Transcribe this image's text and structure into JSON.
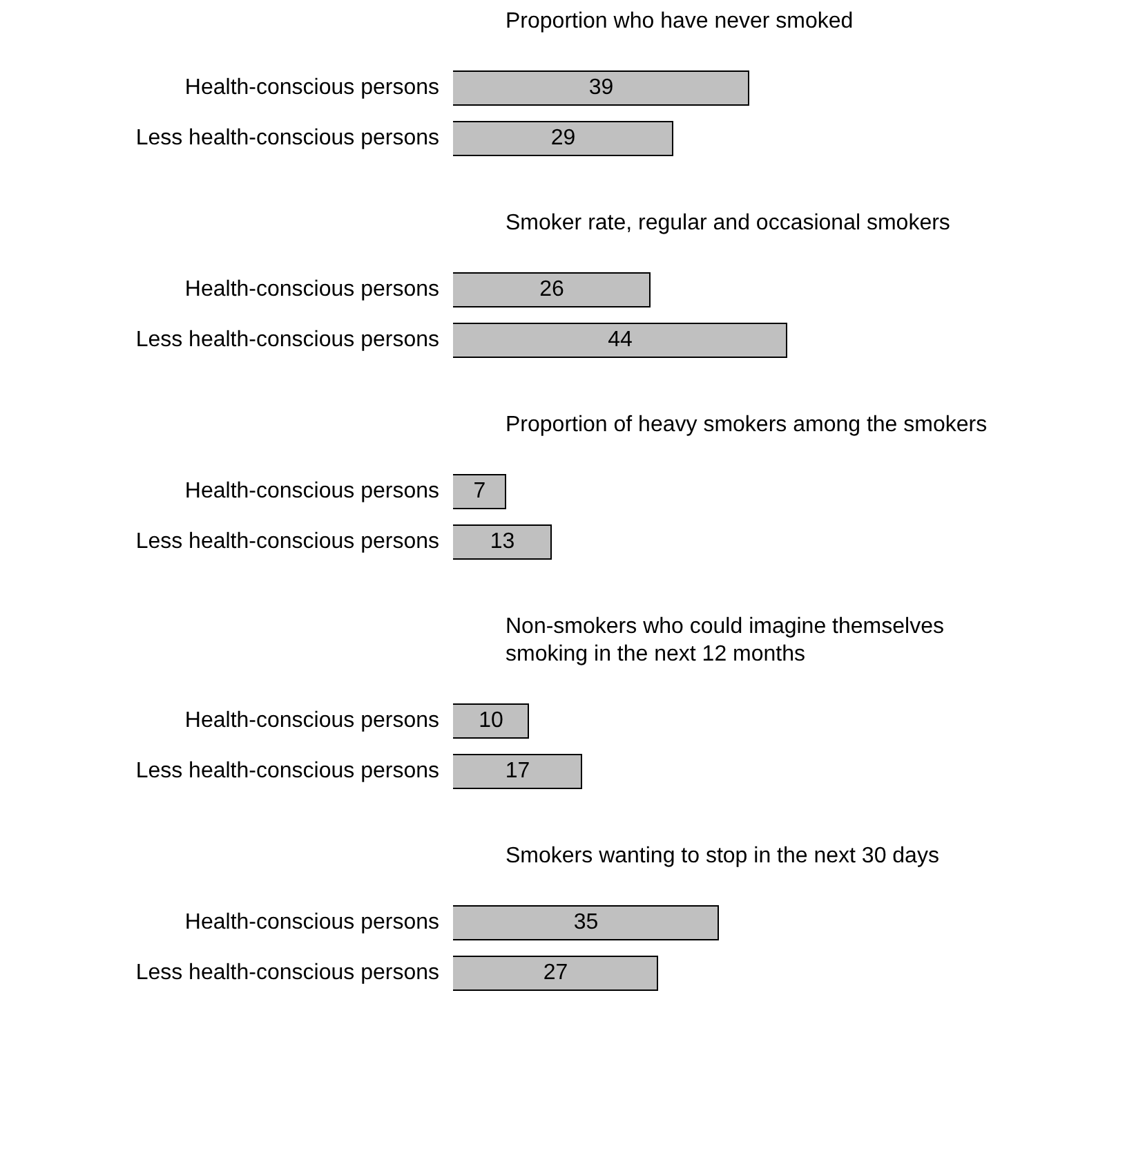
{
  "chart_data": [
    {
      "type": "bar",
      "orientation": "horizontal",
      "title": "Proportion who have never smoked",
      "categories": [
        "Health-conscious persons",
        "Less health-conscious persons"
      ],
      "values": [
        39,
        29
      ],
      "color": "#c0c0c0",
      "data_labels": true,
      "tick_labels": "y"
    },
    {
      "type": "bar",
      "orientation": "horizontal",
      "title": "Smoker rate, regular and occasional smokers",
      "categories": [
        "Health-conscious persons",
        "Less health-conscious persons"
      ],
      "values": [
        26,
        44
      ],
      "color": "#c0c0c0",
      "data_labels": true,
      "tick_labels": "y"
    },
    {
      "type": "bar",
      "orientation": "horizontal",
      "title": "Proportion of heavy smokers among the smokers",
      "categories": [
        "Health-conscious persons",
        "Less health-conscious persons"
      ],
      "values": [
        7,
        13
      ],
      "color": "#c0c0c0",
      "data_labels": true,
      "tick_labels": "y"
    },
    {
      "type": "bar",
      "orientation": "horizontal",
      "title": "Non-smokers who could imagine themselves\nsmoking in the next 12 months",
      "categories": [
        "Health-conscious persons",
        "Less health-conscious persons"
      ],
      "values": [
        10,
        17
      ],
      "color": "#c0c0c0",
      "data_labels": true,
      "tick_labels": "y"
    },
    {
      "type": "bar",
      "orientation": "horizontal",
      "title": "Smokers wanting to stop in the next 30 days",
      "categories": [
        "Health-conscious persons",
        "Less health-conscious persons"
      ],
      "values": [
        35,
        27
      ],
      "color": "#c0c0c0",
      "data_labels": true,
      "tick_labels": "y"
    }
  ]
}
